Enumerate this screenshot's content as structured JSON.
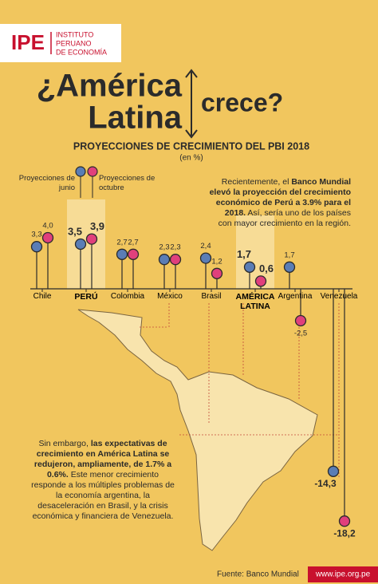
{
  "header": {
    "logo": "IPE",
    "institute": [
      "INSTITUTO",
      "PERUANO",
      "DE ECONOMÍA"
    ]
  },
  "headline": [
    "¿América",
    "Latina",
    "crece?"
  ],
  "chart_data": {
    "type": "lollipop",
    "title": "PROYECCIONES DE CRECIMIENTO DEL PBI 2018",
    "subtitle": "(en %)",
    "categories": [
      "Chile",
      "PERÚ",
      "Colombia",
      "México",
      "Brasil",
      "AMÉRICA LATINA",
      "Argentina",
      "Venezuela"
    ],
    "series": [
      {
        "name": "Proyecciones de junio",
        "color": "#5a7db5",
        "values": [
          3.3,
          3.5,
          2.7,
          2.3,
          2.4,
          1.7,
          1.7,
          -14.3
        ],
        "value_labels": [
          "3,3",
          "3,5",
          "2,7",
          "2,3",
          "2,4",
          "1,7",
          "1,7",
          "-14,3"
        ]
      },
      {
        "name": "Proyecciones de octubre",
        "color": "#e0407c",
        "values": [
          4.0,
          3.9,
          2.7,
          2.3,
          1.2,
          0.6,
          -2.5,
          -18.2
        ],
        "value_labels": [
          "4,0",
          "3,9",
          "2,7",
          "2,3",
          "1,2",
          "0,6",
          "-2,5",
          "-18,2"
        ]
      }
    ]
  },
  "note_top": [
    "Recientemente, el ",
    "Banco Mundial elevó la proyección del crecimiento económico de Perú a 3.9% para el 2018.",
    " Así, sería uno de los países con mayor crecimiento en la región."
  ],
  "note_bottom": [
    "Sin embargo, ",
    "las expectativas de crecimiento en América Latina se redujeron, ampliamente, de 1.7% a 0.6%.",
    " Este menor crecimiento responde a los múltiples problemas de la economía argentina, la desaceleración en Brasil, y la crisis económica y financiera de Venezuela."
  ],
  "footer": {
    "source": "Fuente: Banco Mundial",
    "url": "www.ipe.org.pe"
  }
}
